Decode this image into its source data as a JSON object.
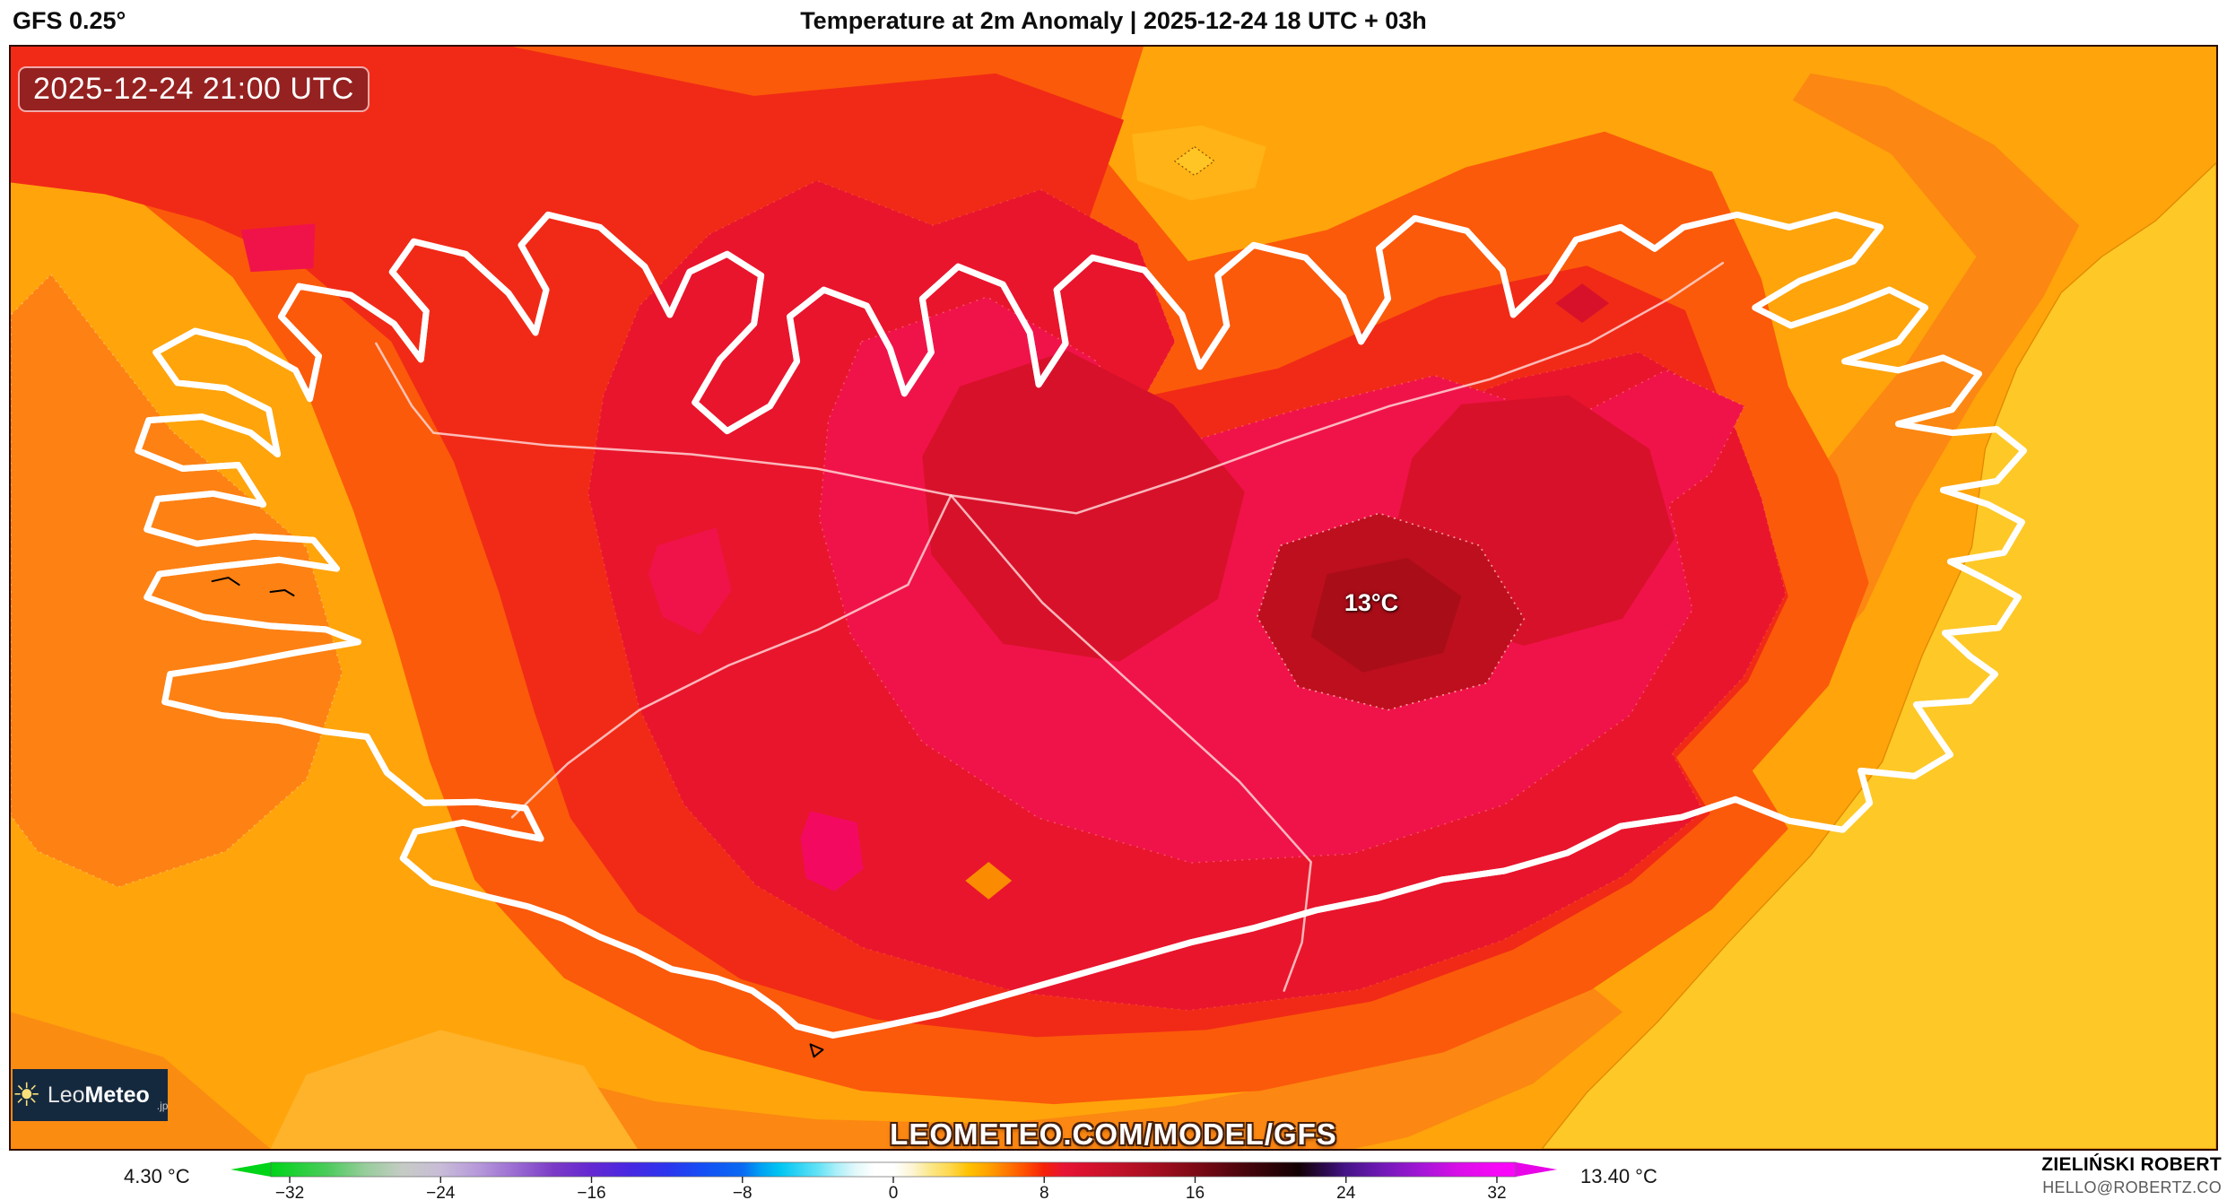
{
  "header": {
    "model_label": "GFS 0.25°",
    "title": "Temperature at 2m Anomaly | 2025-12-24 18 UTC + 03h"
  },
  "map": {
    "valid_time_badge": "2025-12-24 21:00 UTC",
    "peak_value_label": "13°C",
    "watermark_url": "LEOMETEO.COM/MODEL/GFS",
    "logo": {
      "icon": "sun-icon",
      "name_regular": "Leo",
      "name_bold": "Meteo",
      "tld": ".jp"
    }
  },
  "colorbar": {
    "left_value_label": "4.30 °C",
    "right_value_label": "13.40 °C",
    "unit": "°C",
    "domain": [
      -33,
      33
    ],
    "ticks": [
      -32,
      -24,
      -16,
      -8,
      0,
      8,
      16,
      24,
      32
    ],
    "arrow_colors": {
      "left": "#00D418",
      "right": "#E806E8"
    },
    "stops": [
      [
        -33,
        "#00D418"
      ],
      [
        -30,
        "#4CCB5C"
      ],
      [
        -28,
        "#97CD9B"
      ],
      [
        -26,
        "#C6CBC5"
      ],
      [
        -24,
        "#C8BCD8"
      ],
      [
        -22,
        "#B698DA"
      ],
      [
        -20,
        "#9A6BD2"
      ],
      [
        -18,
        "#7B3AC6"
      ],
      [
        -16,
        "#6428D2"
      ],
      [
        -14,
        "#4827E2"
      ],
      [
        -12,
        "#2C34EE"
      ],
      [
        -10,
        "#1450F5"
      ],
      [
        -8,
        "#0A6AF2"
      ],
      [
        -7,
        "#00A2F2"
      ],
      [
        -6,
        "#00C6F2"
      ],
      [
        -4,
        "#63E2F6"
      ],
      [
        -3,
        "#ABEFF9"
      ],
      [
        -2,
        "#E2F8FA"
      ],
      [
        -1,
        "#FFFFFF"
      ],
      [
        0,
        "#FFFFFF"
      ],
      [
        1,
        "#FDF5D4"
      ],
      [
        2,
        "#FBE786"
      ],
      [
        3,
        "#FFD84E"
      ],
      [
        4,
        "#FFC100"
      ],
      [
        5,
        "#FFA300"
      ],
      [
        6,
        "#FF7A00"
      ],
      [
        7,
        "#FF4E00"
      ],
      [
        8,
        "#F52108"
      ],
      [
        9,
        "#E81534"
      ],
      [
        10,
        "#DB1230"
      ],
      [
        12,
        "#C01228"
      ],
      [
        14,
        "#A30E1F"
      ],
      [
        16,
        "#7E0A16"
      ],
      [
        18,
        "#55060E"
      ],
      [
        20,
        "#2E0307"
      ],
      [
        21.5,
        "#120104"
      ],
      [
        23,
        "#2E0B52"
      ],
      [
        24,
        "#451488"
      ],
      [
        26,
        "#7219B8"
      ],
      [
        28,
        "#A316D6"
      ],
      [
        30,
        "#D90FE8"
      ],
      [
        32,
        "#F707F7"
      ],
      [
        33,
        "#FA05FA"
      ]
    ]
  },
  "footer": {
    "author": "ZIELIŃSKI ROBERT",
    "contact": "HELLO@ROBERTZ.CO"
  },
  "palette": {
    "band_yellow": "#FEC827",
    "band_orange": "#FFA40B",
    "band_dark_orange": "#FC8712",
    "band_orange_red": "#FB5A0A",
    "band_red": "#F12A17",
    "band_crimson": "#E9152C",
    "band_pink_crimson": "#F01349",
    "band_bright_pink": "#F30A60",
    "band_dark_red": "#D8112B",
    "band_core": "#BD0F1E",
    "coastline": "#000000",
    "logo_bg": "#15293E"
  }
}
